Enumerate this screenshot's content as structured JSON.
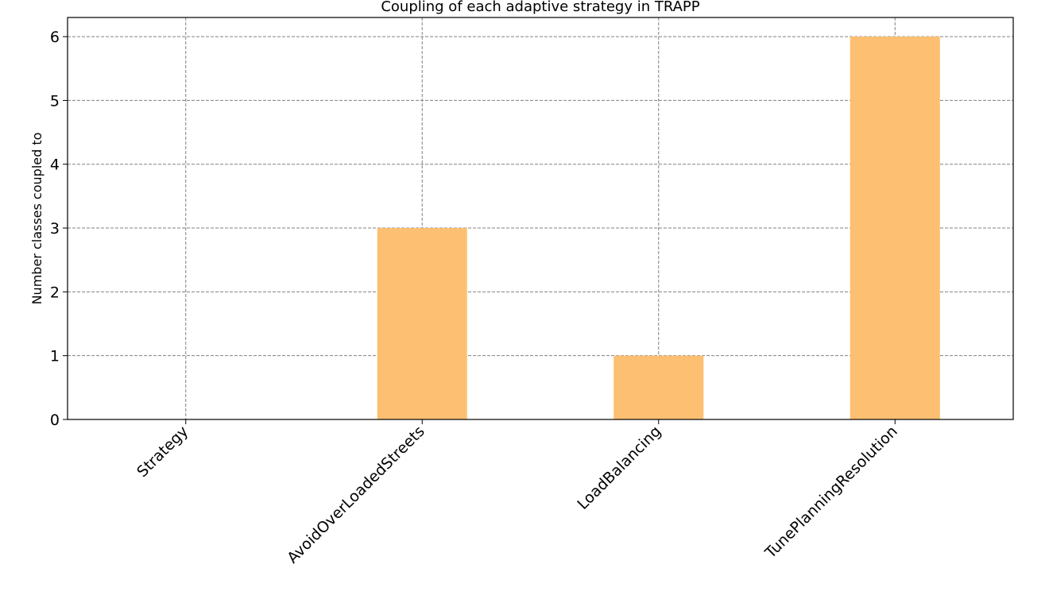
{
  "chart_data": {
    "type": "bar",
    "title": "Coupling of each adaptive strategy in TRAPP",
    "xlabel": "",
    "ylabel": "Number classes coupled to",
    "categories": [
      "Strategy",
      "AvoidOverLoadedStreets",
      "LoadBalancing",
      "TunePlanningResolution"
    ],
    "values": [
      0,
      3,
      1,
      6
    ],
    "ylim": [
      0,
      6.3
    ],
    "yticks": [
      0,
      1,
      2,
      3,
      4,
      5,
      6
    ],
    "grid": true,
    "bar_color": "#fdbf71",
    "xtick_rotation_deg": -45
  }
}
